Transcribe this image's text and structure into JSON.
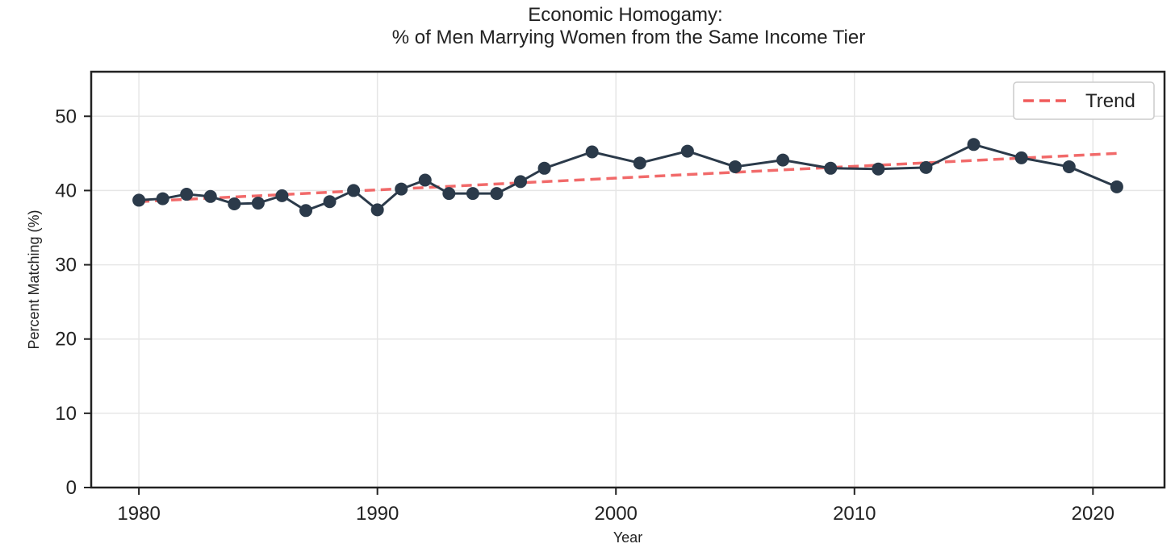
{
  "chart_data": {
    "type": "line",
    "title_lines": [
      "Economic Homogamy:",
      "% of Men Marrying Women from the Same Income Tier"
    ],
    "xlabel": "Year",
    "ylabel": "Percent Matching (%)",
    "xlim": [
      1978,
      2023
    ],
    "ylim": [
      0,
      56
    ],
    "xticks": [
      1980,
      1990,
      2000,
      2010,
      2020
    ],
    "yticks": [
      0,
      10,
      20,
      30,
      40,
      50
    ],
    "grid": true,
    "legend_position": "top-right",
    "series": [
      {
        "role": "observed",
        "color": "#2b3a4a",
        "x": [
          1980,
          1981,
          1982,
          1983,
          1984,
          1985,
          1986,
          1987,
          1988,
          1989,
          1990,
          1991,
          1992,
          1993,
          1994,
          1995,
          1996,
          1997,
          1999,
          2001,
          2003,
          2005,
          2007,
          2009,
          2011,
          2013,
          2015,
          2017,
          2019,
          2021
        ],
        "y": [
          38.7,
          38.9,
          39.5,
          39.2,
          38.2,
          38.3,
          39.3,
          37.3,
          38.5,
          40.0,
          37.4,
          40.2,
          41.4,
          39.6,
          39.6,
          39.6,
          41.2,
          43.0,
          45.2,
          43.7,
          45.3,
          43.2,
          44.1,
          43.0,
          42.9,
          43.1,
          46.2,
          44.4,
          43.2,
          40.5
        ]
      },
      {
        "role": "trend",
        "name": "Trend",
        "color": "#f05a5a",
        "x": [
          1980,
          2021
        ],
        "y": [
          38.5,
          45.0
        ]
      }
    ]
  }
}
